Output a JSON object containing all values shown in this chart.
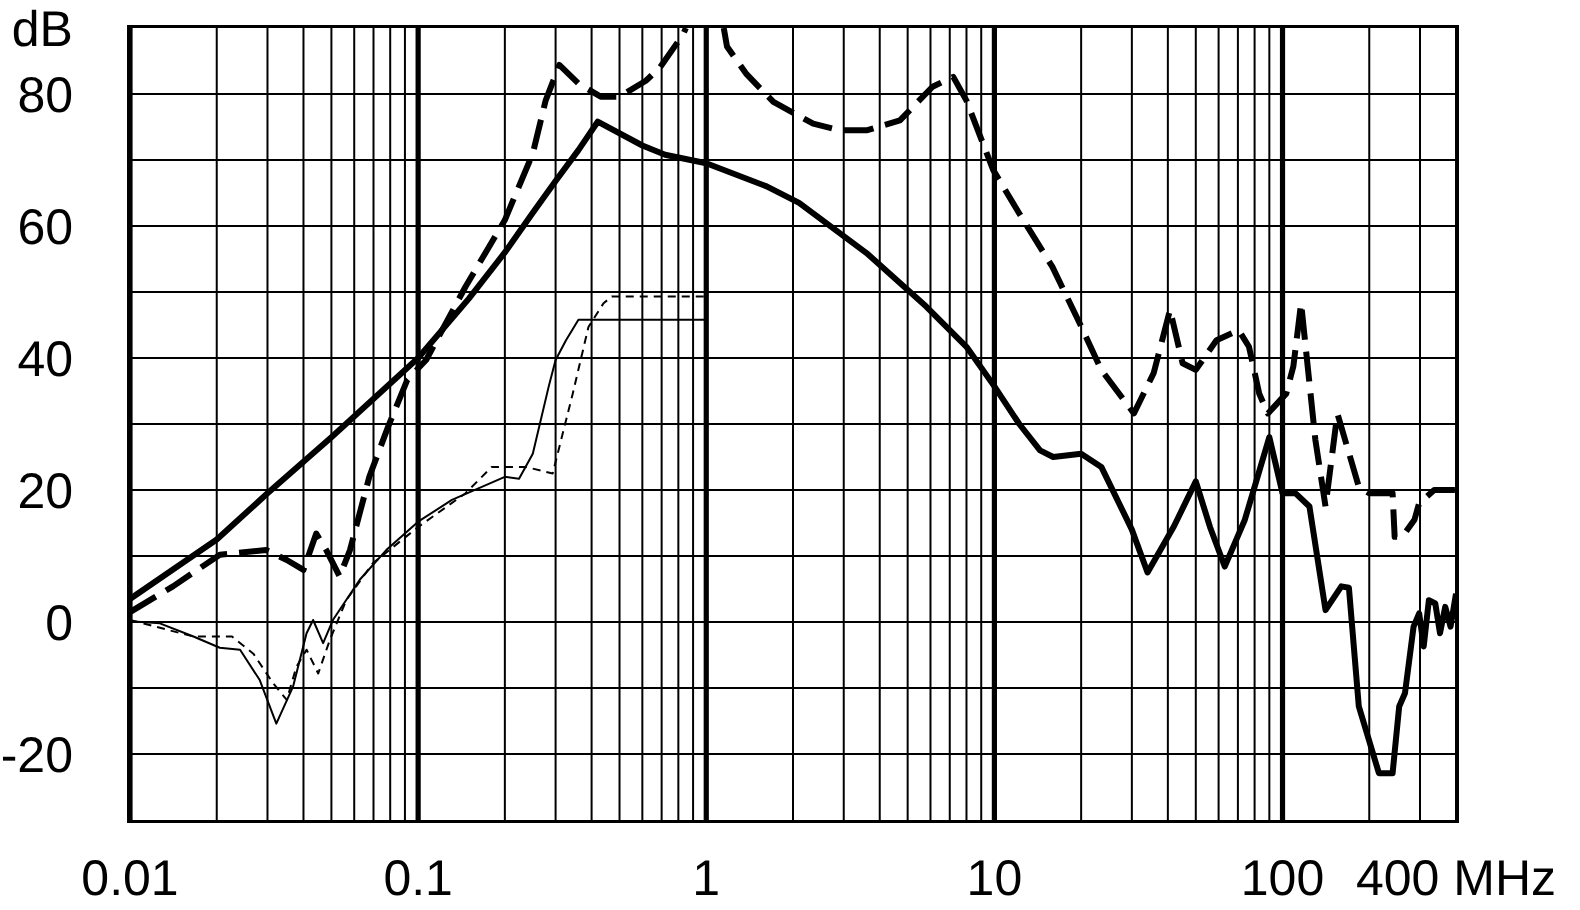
{
  "chart_data": {
    "type": "line",
    "log": "x",
    "grid": true,
    "xlim": [
      0.01,
      400
    ],
    "ylim": [
      -30,
      90
    ],
    "xticks": [
      0.01,
      {
        "value": 0.02,
        "label": null
      },
      {
        "value": 0.03,
        "label": null
      },
      {
        "value": 0.04,
        "label": null
      },
      {
        "value": 0.05,
        "label": null
      },
      {
        "value": 0.06,
        "label": null
      },
      {
        "value": 0.07,
        "label": null
      },
      {
        "value": 0.08,
        "label": null
      },
      {
        "value": 0.09,
        "label": null
      },
      0.1,
      {
        "value": 0.2,
        "label": null
      },
      {
        "value": 0.3,
        "label": null
      },
      {
        "value": 0.4,
        "label": null
      },
      {
        "value": 0.5,
        "label": null
      },
      {
        "value": 0.6,
        "label": null
      },
      {
        "value": 0.7,
        "label": null
      },
      {
        "value": 0.8,
        "label": null
      },
      {
        "value": 0.9,
        "label": null
      },
      1,
      {
        "value": 2,
        "label": null
      },
      {
        "value": 3,
        "label": null
      },
      {
        "value": 4,
        "label": null
      },
      {
        "value": 5,
        "label": null
      },
      {
        "value": 6,
        "label": null
      },
      {
        "value": 7,
        "label": null
      },
      {
        "value": 8,
        "label": null
      },
      {
        "value": 9,
        "label": null
      },
      10,
      {
        "value": 20,
        "label": null
      },
      {
        "value": 30,
        "label": null
      },
      {
        "value": 40,
        "label": null
      },
      {
        "value": 50,
        "label": null
      },
      {
        "value": 60,
        "label": null
      },
      {
        "value": 70,
        "label": null
      },
      {
        "value": 80,
        "label": null
      },
      {
        "value": 90,
        "label": null
      },
      100,
      {
        "value": 200,
        "label": null
      },
      {
        "value": 300,
        "label": null
      },
      {
        "value": 400,
        "label": "400 MHz"
      }
    ],
    "yticks": [
      -20,
      {
        "value": -10,
        "label": null
      },
      0,
      {
        "value": 10,
        "label": null
      },
      20,
      {
        "value": 30,
        "label": null
      },
      40,
      {
        "value": 50,
        "label": null
      },
      60,
      {
        "value": 70,
        "label": null
      },
      80,
      {
        "value": 90,
        "label": "dB"
      }
    ],
    "series": [
      {
        "color": "#000000",
        "line_style": "solid",
        "x": [
          0.01,
          0.02,
          0.03,
          0.05,
          0.1,
          0.15,
          0.2,
          0.25,
          0.3,
          0.36,
          0.42,
          0.6,
          0.72,
          1,
          1.62,
          2.1,
          3.6,
          5.8,
          8,
          10,
          12.2,
          14.4,
          16,
          20,
          23.5,
          30,
          34,
          42,
          50,
          56,
          63,
          74,
          90,
          100,
          111,
          124,
          141,
          160,
          170,
          184,
          216,
          241,
          254,
          266,
          285,
          298,
          309,
          322,
          339,
          352,
          367,
          383,
          400
        ],
        "values": [
          3.5,
          12.5,
          19.5,
          28,
          40,
          49,
          56,
          62,
          66.8,
          71.5,
          75.8,
          72.2,
          70.8,
          69.5,
          66,
          63.5,
          55.9,
          47.8,
          41.7,
          35.7,
          30,
          26,
          25,
          25.5,
          23.5,
          14,
          7.5,
          14.5,
          21.3,
          14.4,
          8.4,
          15.5,
          28,
          19.5,
          19.5,
          17.5,
          1.8,
          5.4,
          5.2,
          -12.8,
          -22.9,
          -22.9,
          -12.8,
          -10.8,
          -0.7,
          1.3,
          -3.7,
          3.3,
          2.8,
          -1.7,
          2.3,
          -0.7,
          4.3
        ]
      },
      {
        "color": "#000000",
        "line_style": "dashed",
        "x": [
          0.01,
          0.0141,
          0.0205,
          0.0297,
          0.035,
          0.04,
          0.0443,
          0.048,
          0.0534,
          0.058,
          0.0677,
          0.0787,
          0.0917,
          0.1066,
          0.146,
          0.2,
          0.25,
          0.277,
          0.309,
          0.36,
          0.43,
          0.5,
          0.617,
          0.69,
          0.83,
          0.85,
          1,
          1.15,
          1.18,
          1.38,
          1.71,
          2.35,
          2.9,
          3.6,
          4.7,
          6.1,
          7.2,
          8,
          9.9,
          12.2,
          15.9,
          20,
          23.5,
          30.5,
          35.7,
          40.7,
          45,
          50,
          59,
          70.5,
          76.5,
          83,
          89,
          103,
          109,
          116,
          130,
          141,
          155,
          184,
          200,
          241,
          245,
          260,
          287,
          298,
          336,
          400
        ],
        "values": [
          1.5,
          5.4,
          10.2,
          10.9,
          9.4,
          7.9,
          13.4,
          10.9,
          6.9,
          10.9,
          22,
          29.6,
          36.7,
          39.7,
          50.8,
          60.9,
          71,
          79,
          84.4,
          81.6,
          79.6,
          79.6,
          82,
          84,
          89,
          90,
          null,
          90,
          87.2,
          83,
          78.8,
          75.5,
          74.5,
          74.5,
          76,
          81.1,
          82.6,
          79,
          68.5,
          61.9,
          53.8,
          44.8,
          38.2,
          31.6,
          37.7,
          47.3,
          39.2,
          38.2,
          42.7,
          44.2,
          41.7,
          34.6,
          31.6,
          34.6,
          38.7,
          48.3,
          27.6,
          17.5,
          31.6,
          20.5,
          19.5,
          19.5,
          12.9,
          12.9,
          15.5,
          18,
          20,
          20
        ]
      },
      {
        "color": "#000000",
        "line_style": "solid",
        "x": [
          0.01,
          0.0127,
          0.0166,
          0.0205,
          0.0241,
          0.0282,
          0.0322,
          0.0368,
          0.041,
          0.0432,
          0.0468,
          0.0506,
          0.0627,
          0.0775,
          0.1,
          0.131,
          0.2,
          0.224,
          0.25,
          0.284,
          0.3,
          0.326,
          0.36,
          0.4,
          1
        ],
        "values": [
          0.1,
          -0.2,
          -2.2,
          -3.9,
          -4.2,
          -8.8,
          -15.4,
          -9.8,
          -1.7,
          0.3,
          -3.2,
          0.3,
          6.4,
          10.9,
          15.2,
          18.5,
          22,
          21.7,
          25.5,
          35.7,
          39.7,
          42.7,
          45.8,
          45.8,
          45.8
        ]
      },
      {
        "color": "#000000",
        "line_style": "dashed",
        "x": [
          0.01,
          0.0166,
          0.0226,
          0.0268,
          0.0314,
          0.035,
          0.0378,
          0.041,
          0.045,
          0.0494,
          0.0563,
          0.0696,
          0.1,
          0.146,
          0.18,
          0.236,
          0.293,
          0.344,
          0.39,
          0.44,
          0.47,
          1
        ],
        "values": [
          0.3,
          -2.2,
          -2.2,
          -4.8,
          -9.3,
          -11.8,
          -6.8,
          -4.2,
          -7.8,
          -2.7,
          3.3,
          8.9,
          14.4,
          19.5,
          23.5,
          23.5,
          22.5,
          34.6,
          44.7,
          48.3,
          49.3,
          49.3
        ]
      }
    ]
  }
}
